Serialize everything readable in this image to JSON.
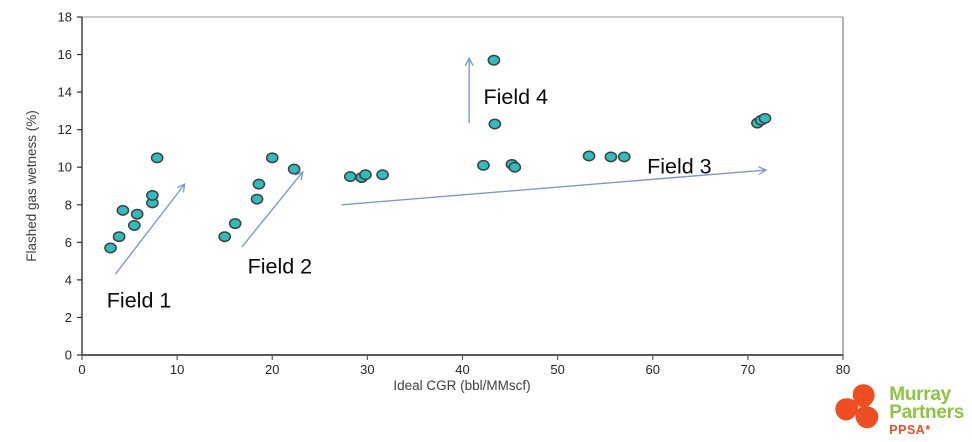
{
  "page": {
    "background": "#ffffff"
  },
  "chart_data": {
    "type": "scatter",
    "title": "",
    "xlabel": "Ideal CGR (bbl/MMscf)",
    "ylabel": "Flashed gas wetness (%)",
    "xlim": [
      0,
      80
    ],
    "ylim": [
      0,
      18
    ],
    "x_ticks": [
      0,
      10,
      20,
      30,
      40,
      50,
      60,
      70,
      80
    ],
    "y_ticks": [
      0,
      2,
      4,
      6,
      8,
      10,
      12,
      14,
      16,
      18
    ],
    "grid": false,
    "legend": "none",
    "marker_color": "#2BBFC0",
    "marker_stroke": "#3F3F3F",
    "arrow_color": "#7B9BCD",
    "axis_color": "#404040",
    "top_border_color": "#C9C9C9",
    "right_border_color": "#808080",
    "series": [
      {
        "name": "Field 1",
        "points": [
          [
            3,
            5.7
          ],
          [
            3.9,
            6.3
          ],
          [
            4.3,
            7.7
          ],
          [
            5.5,
            6.9
          ],
          [
            5.8,
            7.5
          ],
          [
            7.4,
            8.1
          ],
          [
            7.4,
            8.5
          ],
          [
            7.9,
            10.5
          ]
        ]
      },
      {
        "name": "Field 2",
        "points": [
          [
            15,
            6.3
          ],
          [
            16.1,
            7.0
          ],
          [
            18.4,
            8.3
          ],
          [
            18.6,
            9.1
          ],
          [
            20,
            10.5
          ],
          [
            22.3,
            9.9
          ]
        ]
      },
      {
        "name": "Field 3",
        "points": [
          [
            28.2,
            9.5
          ],
          [
            29.4,
            9.45
          ],
          [
            29.8,
            9.6
          ],
          [
            31.6,
            9.6
          ],
          [
            42.2,
            10.1
          ],
          [
            45.2,
            10.15
          ],
          [
            45.5,
            10.0
          ],
          [
            53.3,
            10.6
          ],
          [
            55.6,
            10.55
          ],
          [
            57,
            10.55
          ],
          [
            71,
            12.35
          ],
          [
            71.4,
            12.5
          ],
          [
            71.8,
            12.6
          ]
        ]
      },
      {
        "name": "Field 4",
        "points": [
          [
            43.3,
            15.7
          ],
          [
            43.4,
            12.3
          ]
        ]
      }
    ],
    "annotations": [
      {
        "label": "Field 1",
        "x": 6.0,
        "y": 2.9
      },
      {
        "label": "Field 2",
        "x": 20.8,
        "y": 4.7
      },
      {
        "label": "Field 3",
        "x": 62.8,
        "y": 10.05
      },
      {
        "label": "Field 4",
        "x": 45.6,
        "y": 13.75
      }
    ],
    "arrows": [
      {
        "x1": 3.5,
        "y1": 4.3,
        "x2": 10.8,
        "y2": 9.1
      },
      {
        "x1": 16.8,
        "y1": 5.75,
        "x2": 23.2,
        "y2": 9.75
      },
      {
        "x1": 27.3,
        "y1": 8.0,
        "x2": 71.9,
        "y2": 9.85
      },
      {
        "x1": 40.7,
        "y1": 12.35,
        "x2": 40.7,
        "y2": 15.8
      }
    ]
  },
  "logo": {
    "line1": "Murray",
    "line2": "Partners",
    "line3": "PPSA*",
    "text_color": "#8CC63F",
    "accent_color": "#EF4E23"
  }
}
